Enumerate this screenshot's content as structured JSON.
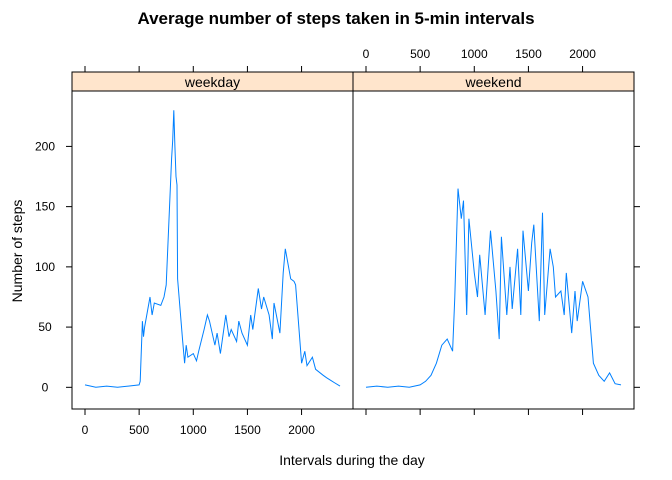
{
  "chart_data": {
    "type": "line",
    "title": "Average number of steps taken in 5-min intervals",
    "xlabel": "Intervals during the day",
    "ylabel": "Number of steps",
    "xlim": [
      -120,
      2475
    ],
    "ylim": [
      -18,
      246
    ],
    "x_ticks": [
      0,
      500,
      1000,
      1500,
      2000
    ],
    "y_ticks": [
      0,
      50,
      100,
      150,
      200
    ],
    "series_color": "#0080ff",
    "strip_color": "#ffe5cc",
    "panels": [
      {
        "name": "weekday",
        "x": [
          0,
          100,
          200,
          300,
          400,
          500,
          510,
          520,
          530,
          540,
          550,
          600,
          620,
          640,
          700,
          730,
          750,
          800,
          810,
          820,
          830,
          840,
          850,
          855,
          900,
          920,
          935,
          950,
          1000,
          1030,
          1050,
          1100,
          1130,
          1150,
          1200,
          1220,
          1250,
          1300,
          1330,
          1350,
          1400,
          1420,
          1450,
          1500,
          1530,
          1550,
          1600,
          1630,
          1650,
          1700,
          1730,
          1745,
          1800,
          1830,
          1850,
          1900,
          1930,
          1945,
          2000,
          2030,
          2050,
          2100,
          2130,
          2200,
          2230,
          2300,
          2355
        ],
        "y": [
          2,
          0,
          1,
          0,
          1,
          2,
          5,
          30,
          55,
          42,
          50,
          75,
          60,
          70,
          68,
          75,
          85,
          190,
          205,
          230,
          200,
          175,
          168,
          90,
          40,
          20,
          35,
          25,
          28,
          22,
          30,
          48,
          60,
          55,
          35,
          45,
          28,
          60,
          42,
          48,
          38,
          55,
          45,
          35,
          60,
          48,
          82,
          65,
          75,
          60,
          40,
          70,
          45,
          95,
          115,
          90,
          88,
          85,
          20,
          30,
          18,
          25,
          15,
          10,
          8,
          4,
          1
        ]
      },
      {
        "name": "weekend",
        "x": [
          0,
          100,
          200,
          300,
          400,
          500,
          550,
          600,
          650,
          700,
          750,
          800,
          820,
          850,
          880,
          900,
          930,
          950,
          1000,
          1030,
          1050,
          1100,
          1150,
          1200,
          1230,
          1250,
          1300,
          1330,
          1350,
          1400,
          1430,
          1450,
          1500,
          1530,
          1550,
          1600,
          1630,
          1650,
          1700,
          1730,
          1750,
          1800,
          1830,
          1850,
          1900,
          1930,
          1950,
          2000,
          2050,
          2100,
          2150,
          2200,
          2250,
          2300,
          2355
        ],
        "y": [
          0,
          1,
          0,
          1,
          0,
          2,
          5,
          10,
          20,
          35,
          40,
          30,
          75,
          165,
          140,
          155,
          60,
          140,
          95,
          75,
          110,
          60,
          130,
          80,
          40,
          125,
          60,
          100,
          65,
          115,
          60,
          130,
          80,
          120,
          135,
          55,
          145,
          60,
          115,
          100,
          75,
          80,
          60,
          95,
          45,
          80,
          55,
          88,
          75,
          20,
          10,
          5,
          12,
          3,
          2
        ]
      }
    ]
  }
}
